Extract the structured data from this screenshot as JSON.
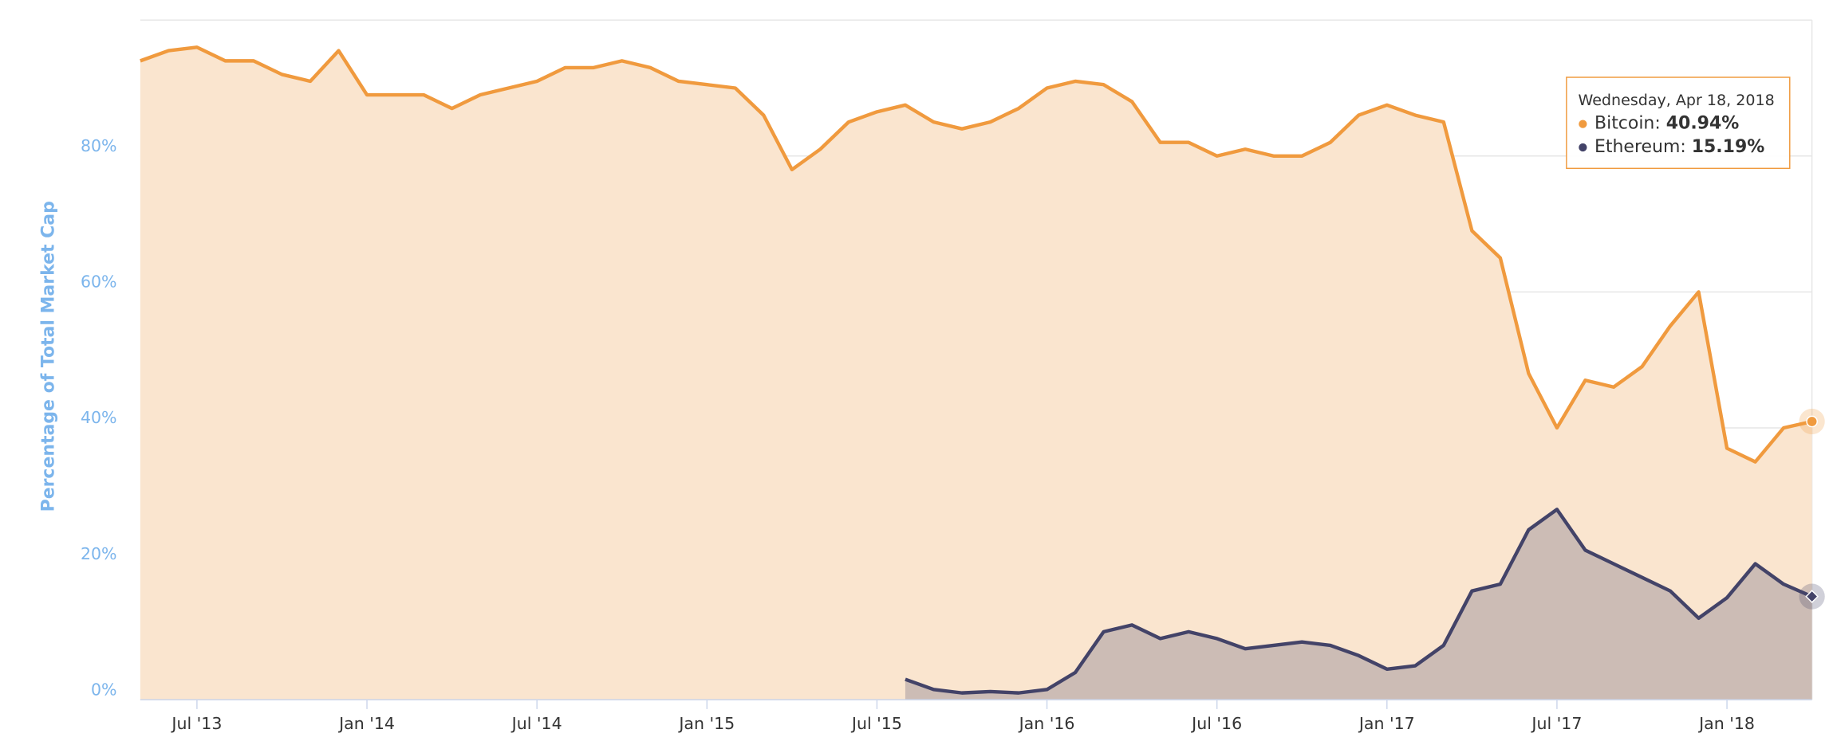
{
  "chart_data": {
    "type": "area",
    "y_axis_label": "Percentage of Total Market Cap",
    "x": [
      "2013-05",
      "2013-06",
      "2013-07",
      "2013-08",
      "2013-09",
      "2013-10",
      "2013-11",
      "2013-12",
      "2014-01",
      "2014-02",
      "2014-03",
      "2014-04",
      "2014-05",
      "2014-06",
      "2014-07",
      "2014-08",
      "2014-09",
      "2014-10",
      "2014-11",
      "2014-12",
      "2015-01",
      "2015-02",
      "2015-03",
      "2015-04",
      "2015-05",
      "2015-06",
      "2015-07",
      "2015-08",
      "2015-09",
      "2015-10",
      "2015-11",
      "2015-12",
      "2016-01",
      "2016-02",
      "2016-03",
      "2016-04",
      "2016-05",
      "2016-06",
      "2016-07",
      "2016-08",
      "2016-09",
      "2016-10",
      "2016-11",
      "2016-12",
      "2017-01",
      "2017-02",
      "2017-03",
      "2017-04",
      "2017-05",
      "2017-06",
      "2017-07",
      "2017-08",
      "2017-09",
      "2017-10",
      "2017-11",
      "2017-12",
      "2018-01",
      "2018-02",
      "2018-03",
      "2018-04"
    ],
    "series": [
      {
        "name": "Bitcoin",
        "color": "#f09a3e",
        "fill": "#fae5cf",
        "values": [
          94,
          95.5,
          96,
          94,
          94,
          92,
          91,
          95.5,
          89,
          89,
          89,
          87,
          89,
          90,
          91,
          93,
          93,
          94,
          93,
          91,
          90.5,
          90,
          86,
          78,
          81,
          85,
          86.5,
          87.5,
          85,
          84,
          85,
          87,
          90,
          91,
          90.5,
          88,
          82,
          82,
          80,
          81,
          80,
          80,
          82,
          86,
          87.5,
          86,
          85,
          69,
          65,
          48,
          40,
          47,
          46,
          49,
          55,
          60,
          37,
          35,
          40,
          40.94
        ]
      },
      {
        "name": "Ethereum",
        "color": "#434368",
        "fill": "#434368",
        "values": [
          null,
          null,
          null,
          null,
          null,
          null,
          null,
          null,
          null,
          null,
          null,
          null,
          null,
          null,
          null,
          null,
          null,
          null,
          null,
          null,
          null,
          null,
          null,
          null,
          null,
          null,
          null,
          3,
          1.5,
          1,
          1.2,
          1,
          1.5,
          4,
          10,
          11,
          9,
          10,
          9,
          7.5,
          8,
          8.5,
          8,
          6.5,
          4.5,
          5,
          8,
          16,
          17,
          25,
          28,
          22,
          20,
          18,
          16,
          12,
          15,
          20,
          17,
          15.19
        ]
      }
    ],
    "xlim": [
      "2013-05",
      "2018-04"
    ],
    "xticks": [
      {
        "value": "2013-07",
        "label": "Jul '13"
      },
      {
        "value": "2014-01",
        "label": "Jan '14"
      },
      {
        "value": "2014-07",
        "label": "Jul '14"
      },
      {
        "value": "2015-01",
        "label": "Jan '15"
      },
      {
        "value": "2015-07",
        "label": "Jul '15"
      },
      {
        "value": "2016-01",
        "label": "Jan '16"
      },
      {
        "value": "2016-07",
        "label": "Jul '16"
      },
      {
        "value": "2017-01",
        "label": "Jan '17"
      },
      {
        "value": "2017-07",
        "label": "Jul '17"
      },
      {
        "value": "2018-01",
        "label": "Jan '18"
      }
    ],
    "ylim": [
      0,
      100
    ],
    "yticks": [
      {
        "value": 0,
        "label": "0%"
      },
      {
        "value": 20,
        "label": "20%"
      },
      {
        "value": 40,
        "label": "40%"
      },
      {
        "value": 60,
        "label": "60%"
      },
      {
        "value": 80,
        "label": "80%"
      }
    ],
    "grid": true,
    "tooltip": {
      "title": "Wednesday, Apr 18, 2018",
      "labels": [
        "40.94%",
        "15.19%"
      ]
    }
  }
}
